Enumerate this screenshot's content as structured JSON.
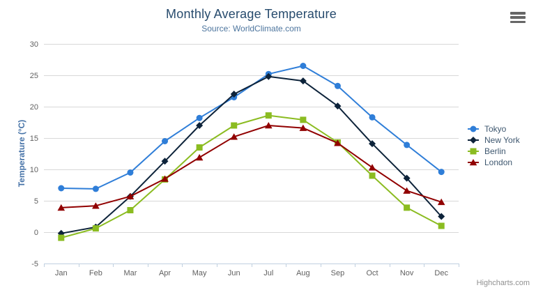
{
  "header": {
    "title": "Monthly Average Temperature",
    "subtitle": "Source: WorldClimate.com"
  },
  "credits_label": "Highcharts.com",
  "context_menu": {
    "icon": "hamburger-icon"
  },
  "colors": {
    "title": "#274b6d",
    "subtitle": "#4d759e",
    "axis_title": "#4572A7",
    "axis_labels": "#606060",
    "gridline": "#D8D8D8",
    "axis_line": "#C0D0E0",
    "tick": "#C0D0E0",
    "legend_text": "#3E576F",
    "credits": "#909090",
    "menu_icon": "#666666"
  },
  "chart_data": {
    "type": "line",
    "title": "Monthly Average Temperature",
    "subtitle": "Source: WorldClimate.com",
    "xlabel": "",
    "ylabel": "Temperature (°C)",
    "ylim": [
      -5,
      30
    ],
    "yticks": [
      -5,
      0,
      5,
      10,
      15,
      20,
      25,
      30
    ],
    "grid": true,
    "legend_position": "right",
    "categories": [
      "Jan",
      "Feb",
      "Mar",
      "Apr",
      "May",
      "Jun",
      "Jul",
      "Aug",
      "Sep",
      "Oct",
      "Nov",
      "Dec"
    ],
    "series": [
      {
        "name": "Tokyo",
        "color": "#2f7ed8",
        "marker": "circle",
        "values": [
          7.0,
          6.9,
          9.5,
          14.5,
          18.2,
          21.5,
          25.2,
          26.5,
          23.3,
          18.3,
          13.9,
          9.6
        ]
      },
      {
        "name": "New York",
        "color": "#0d233a",
        "marker": "diamond",
        "values": [
          -0.2,
          0.8,
          5.7,
          11.3,
          17.0,
          22.0,
          24.8,
          24.1,
          20.1,
          14.1,
          8.6,
          2.5
        ]
      },
      {
        "name": "Berlin",
        "color": "#8bbc21",
        "marker": "square",
        "values": [
          -0.9,
          0.6,
          3.5,
          8.4,
          13.5,
          17.0,
          18.6,
          17.9,
          14.3,
          9.0,
          3.9,
          1.0
        ]
      },
      {
        "name": "London",
        "color": "#910000",
        "marker": "triangle",
        "values": [
          3.9,
          4.2,
          5.7,
          8.5,
          11.9,
          15.2,
          17.0,
          16.6,
          14.2,
          10.3,
          6.6,
          4.8
        ]
      }
    ]
  }
}
